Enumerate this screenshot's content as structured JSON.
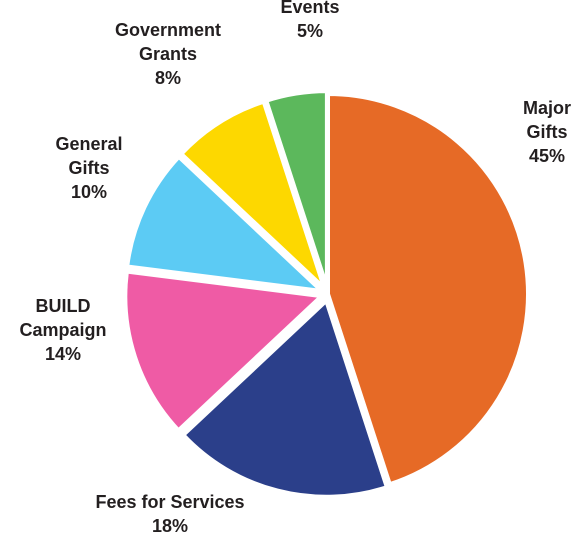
{
  "chart_data": {
    "type": "pie",
    "title": "",
    "unit": "%",
    "slices": [
      {
        "name": "Major Gifts",
        "label_lines": [
          "Major",
          "Gifts"
        ],
        "value": 45,
        "value_label": "45%",
        "color": "#e66a26",
        "exploded": false
      },
      {
        "name": "Fees for Services",
        "label_lines": [
          "Fees for Services"
        ],
        "value": 18,
        "value_label": "18%",
        "color": "#2b3f8a",
        "exploded": true
      },
      {
        "name": "BUILD Campaign",
        "label_lines": [
          "BUILD",
          "Campaign"
        ],
        "value": 14,
        "value_label": "14%",
        "color": "#ef5ba5",
        "exploded": true
      },
      {
        "name": "General Gifts",
        "label_lines": [
          "General",
          "Gifts"
        ],
        "value": 10,
        "value_label": "10%",
        "color": "#5ccbf4",
        "exploded": true
      },
      {
        "name": "Government Grants",
        "label_lines": [
          "Government",
          "Grants"
        ],
        "value": 8,
        "value_label": "8%",
        "color": "#fdd800",
        "exploded": true
      },
      {
        "name": "Events",
        "label_lines": [
          "Events"
        ],
        "value": 5,
        "value_label": "5%",
        "color": "#5cb85c",
        "exploded": true
      }
    ],
    "legend": "none",
    "labels": "outside"
  }
}
